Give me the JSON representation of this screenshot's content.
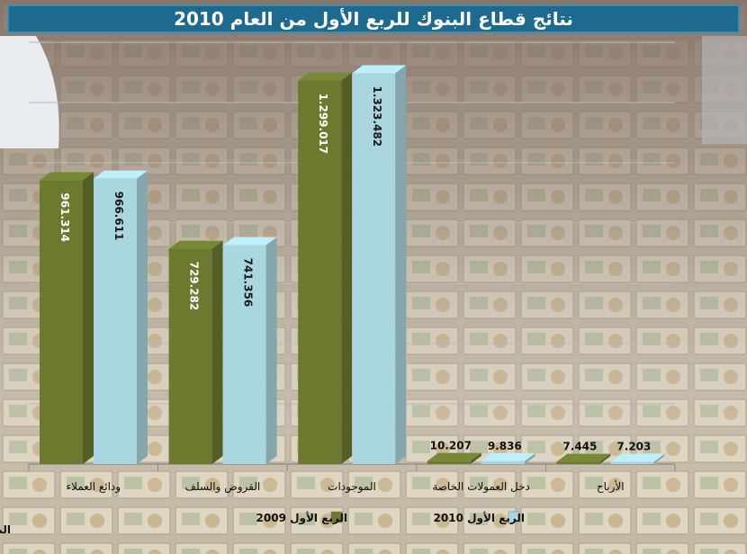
{
  "title": "نتائج قطاع البنوك للربع الأول من العام 2010",
  "source": "المصدر: مؤسسة النقد العربي السعودي",
  "colors": {
    "title_bg": "#1e6a8f",
    "series_2009": "#6b7a2f",
    "series_2010": "#a9d6df"
  },
  "chart_data": {
    "type": "bar",
    "categories": [
      "ودائع العملاء",
      "القروض والسلف",
      "الموجودات",
      "دخل العمولات الخاصة",
      "الأرباح"
    ],
    "series": [
      {
        "name": "الربع الأول 2009",
        "values": [
          961.314,
          729.282,
          1299.017,
          10.207,
          7.445
        ],
        "labels": [
          "961.314",
          "729.282",
          "1.299.017",
          "10.207",
          "7.445"
        ]
      },
      {
        "name": "الربع الأول 2010",
        "values": [
          966.611,
          741.356,
          1323.482,
          9.836,
          7.203
        ],
        "labels": [
          "966.611",
          "741.356",
          "1.323.482",
          "9.836",
          "7.203"
        ]
      }
    ],
    "ylim": [
      0,
      1450
    ],
    "grid": true,
    "legend": "bottom"
  }
}
